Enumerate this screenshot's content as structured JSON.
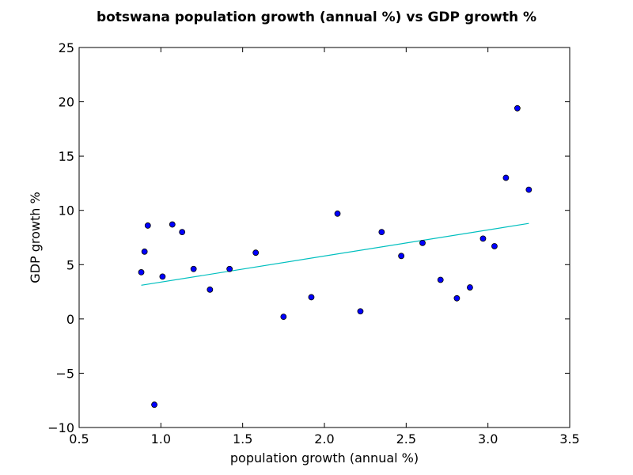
{
  "chart_data": {
    "type": "scatter",
    "title": "botswana population growth (annual %) vs GDP growth %",
    "xlabel": "population growth (annual %)",
    "ylabel": "GDP growth %",
    "xlim": [
      0.5,
      3.5
    ],
    "ylim": [
      -10,
      25
    ],
    "xticks": [
      0.5,
      1.0,
      1.5,
      2.0,
      2.5,
      3.0,
      3.5
    ],
    "xtick_labels": [
      "0.5",
      "1.0",
      "1.5",
      "2.0",
      "2.5",
      "3.0",
      "3.5"
    ],
    "yticks": [
      -10,
      -5,
      0,
      5,
      10,
      15,
      20,
      25
    ],
    "ytick_labels": [
      "−10",
      "−5",
      "0",
      "5",
      "10",
      "15",
      "20",
      "25"
    ],
    "grid": false,
    "points": [
      {
        "x": 0.88,
        "y": 4.3
      },
      {
        "x": 0.9,
        "y": 6.2
      },
      {
        "x": 0.92,
        "y": 8.6
      },
      {
        "x": 0.96,
        "y": -7.9
      },
      {
        "x": 1.01,
        "y": 3.9
      },
      {
        "x": 1.07,
        "y": 8.7
      },
      {
        "x": 1.13,
        "y": 8.0
      },
      {
        "x": 1.2,
        "y": 4.6
      },
      {
        "x": 1.3,
        "y": 2.7
      },
      {
        "x": 1.42,
        "y": 4.6
      },
      {
        "x": 1.58,
        "y": 6.1
      },
      {
        "x": 1.75,
        "y": 0.2
      },
      {
        "x": 1.92,
        "y": 2.0
      },
      {
        "x": 2.08,
        "y": 9.7
      },
      {
        "x": 2.22,
        "y": 0.7
      },
      {
        "x": 2.35,
        "y": 8.0
      },
      {
        "x": 2.47,
        "y": 5.8
      },
      {
        "x": 2.6,
        "y": 7.0
      },
      {
        "x": 2.71,
        "y": 3.6
      },
      {
        "x": 2.81,
        "y": 1.9
      },
      {
        "x": 2.89,
        "y": 2.9
      },
      {
        "x": 2.97,
        "y": 7.4
      },
      {
        "x": 3.04,
        "y": 6.7
      },
      {
        "x": 3.11,
        "y": 13.0
      },
      {
        "x": 3.18,
        "y": 19.4
      },
      {
        "x": 3.25,
        "y": 11.9
      }
    ],
    "trendline": {
      "x": [
        0.88,
        3.25
      ],
      "y": [
        3.1,
        8.8
      ]
    },
    "colors": {
      "point_fill": "#0000ff",
      "point_edge": "#000000",
      "trendline": "#00bfbf"
    }
  }
}
